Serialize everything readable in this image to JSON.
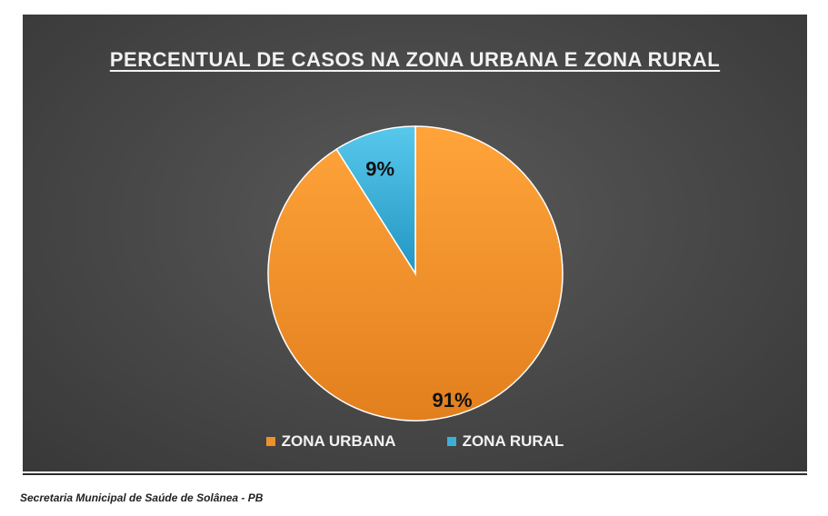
{
  "chart_data": {
    "type": "pie",
    "title": "PERCENTUAL DE CASOS NA ZONA URBANA E ZONA RURAL",
    "categories": [
      "ZONA URBANA",
      "ZONA RURAL"
    ],
    "values": [
      91,
      9
    ],
    "data_labels": [
      "91%",
      "9%"
    ],
    "colors": [
      "#F0902A",
      "#3BB0D6"
    ],
    "legend_position": "bottom"
  },
  "footer": {
    "source": "Secretaria Municipal de Saúde de Solânea - PB"
  }
}
